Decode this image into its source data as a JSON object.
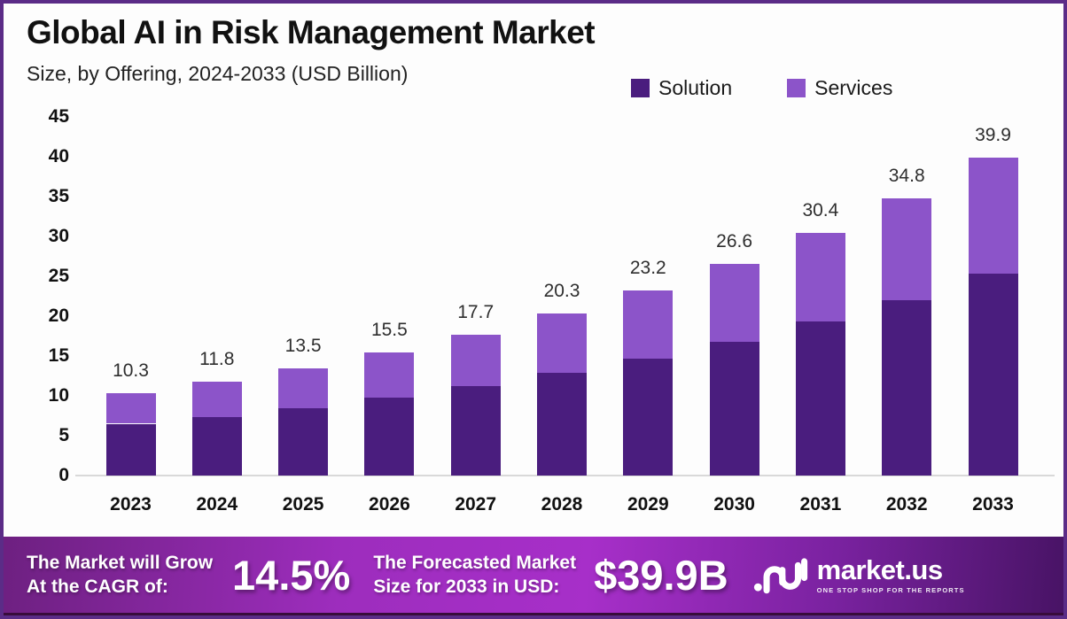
{
  "header": {
    "title": "Global AI in Risk Management Market",
    "subtitle": "Size, by Offering, 2024-2033 (USD Billion)"
  },
  "colors": {
    "solution": "#4A1D7E",
    "services": "#8C54C9",
    "frame_border": "#5B2C87",
    "baseline": "#D9D9D9",
    "footer_gradient_mid": "#A72FC9"
  },
  "chart_data": {
    "type": "bar",
    "stacked": true,
    "title": "Global AI in Risk Management Market",
    "subtitle": "Size, by Offering, 2024-2033 (USD Billion)",
    "categories": [
      "2023",
      "2024",
      "2025",
      "2026",
      "2027",
      "2028",
      "2029",
      "2030",
      "2031",
      "2032",
      "2033"
    ],
    "series": [
      {
        "name": "Solution",
        "color": "#4A1D7E",
        "values": [
          6.5,
          7.3,
          8.4,
          9.8,
          11.2,
          12.9,
          14.7,
          16.8,
          19.3,
          22.0,
          25.3
        ]
      },
      {
        "name": "Services",
        "color": "#8C54C9",
        "values": [
          3.8,
          4.5,
          5.1,
          5.7,
          6.5,
          7.4,
          8.5,
          9.8,
          11.1,
          12.8,
          14.6
        ]
      }
    ],
    "totals": [
      10.3,
      11.8,
      13.5,
      15.5,
      17.7,
      20.3,
      23.2,
      26.6,
      30.4,
      34.8,
      39.9
    ],
    "total_labels": [
      "10.3",
      "11.8",
      "13.5",
      "15.5",
      "17.7",
      "20.3",
      "23.2",
      "26.6",
      "30.4",
      "34.8",
      "39.9"
    ],
    "xlabel": "",
    "ylabel": "",
    "ylim": [
      0,
      45
    ],
    "yticks": [
      0,
      5,
      10,
      15,
      20,
      25,
      30,
      35,
      40,
      45
    ],
    "grid": false,
    "legend_position": "top-right",
    "legend_entries": [
      "Solution",
      "Services"
    ]
  },
  "footer": {
    "cagr_label_line1": "The Market will Grow",
    "cagr_label_line2": "At the CAGR of:",
    "cagr_value": "14.5%",
    "forecast_label_line1": "The Forecasted Market",
    "forecast_label_line2": "Size for 2033 in USD:",
    "forecast_value": "$39.9B",
    "brand": "market.us",
    "brand_tagline": "ONE STOP SHOP FOR THE REPORTS"
  }
}
